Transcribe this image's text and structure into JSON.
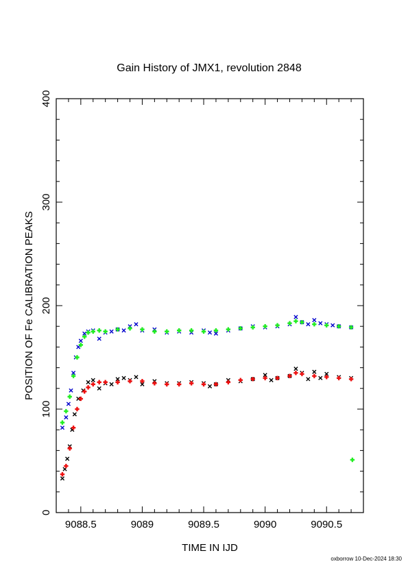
{
  "chart_data": {
    "type": "scatter",
    "title": "Gain History of JMX1, revolution 2848",
    "xlabel": "TIME IN IJD",
    "ylabel": "POSITION OF Fe CALIBRATION PEAKS",
    "xlim": [
      9088.3,
      9090.8
    ],
    "ylim": [
      0,
      400
    ],
    "x_ticks": [
      9088.5,
      9089,
      9089.5,
      9090,
      9090.5
    ],
    "x_tick_labels": [
      "9088.5",
      "9089",
      "9089.5",
      "9090",
      "9090.5"
    ],
    "y_ticks": [
      0,
      100,
      200,
      300,
      400
    ],
    "y_tick_labels": [
      "0",
      "100",
      "200",
      "300",
      "400"
    ],
    "footer": "oxborrow 10-Dec-2024 18:30",
    "series": [
      {
        "color": "#0000cc",
        "marker": "x",
        "x": [
          9088.35,
          9088.38,
          9088.4,
          9088.42,
          9088.44,
          9088.46,
          9088.48,
          9088.5,
          9088.53,
          9088.56,
          9088.6,
          9088.65,
          9088.7,
          9088.75,
          9088.8,
          9088.85,
          9088.9,
          9088.95,
          9089.0,
          9089.1,
          9089.2,
          9089.3,
          9089.4,
          9089.5,
          9089.55,
          9089.6,
          9089.7,
          9089.8,
          9089.9,
          9090.0,
          9090.1,
          9090.2,
          9090.25,
          9090.3,
          9090.35,
          9090.4,
          9090.45,
          9090.5,
          9090.55,
          9090.6,
          9090.7
        ],
        "y": [
          82,
          92,
          105,
          118,
          135,
          150,
          160,
          166,
          173,
          175,
          176,
          168,
          174,
          175,
          177,
          176,
          180,
          182,
          176,
          177,
          174,
          175,
          174,
          176,
          174,
          173,
          176,
          178,
          180,
          179,
          180,
          182,
          189,
          184,
          182,
          186,
          183,
          182,
          181,
          180,
          179
        ]
      },
      {
        "color": "#22ee22",
        "marker": "+",
        "x": [
          9088.35,
          9088.38,
          9088.41,
          9088.44,
          9088.47,
          9088.5,
          9088.53,
          9088.56,
          9088.6,
          9088.65,
          9088.7,
          9088.8,
          9088.9,
          9089.0,
          9089.1,
          9089.2,
          9089.3,
          9089.4,
          9089.5,
          9089.6,
          9089.7,
          9089.8,
          9089.9,
          9090.0,
          9090.1,
          9090.2,
          9090.25,
          9090.3,
          9090.4,
          9090.5,
          9090.6,
          9090.7
        ],
        "y": [
          87,
          98,
          112,
          132,
          150,
          162,
          170,
          174,
          175,
          176,
          175,
          177,
          178,
          177,
          175,
          175,
          176,
          176,
          175,
          176,
          177,
          178,
          179,
          180,
          181,
          183,
          185,
          184,
          182,
          181,
          180,
          179
        ]
      },
      {
        "color": "#22ee22",
        "marker": "+",
        "x": [
          9090.71
        ],
        "y": [
          51
        ]
      },
      {
        "color": "#000000",
        "marker": "x",
        "x": [
          9088.35,
          9088.37,
          9088.39,
          9088.41,
          9088.43,
          9088.45,
          9088.48,
          9088.52,
          9088.56,
          9088.6,
          9088.65,
          9088.7,
          9088.75,
          9088.8,
          9088.85,
          9088.9,
          9088.95,
          9089.0,
          9089.1,
          9089.2,
          9089.3,
          9089.4,
          9089.5,
          9089.55,
          9089.6,
          9089.7,
          9089.8,
          9089.9,
          9090.0,
          9090.05,
          9090.1,
          9090.2,
          9090.25,
          9090.3,
          9090.35,
          9090.4,
          9090.45,
          9090.5,
          9090.6,
          9090.7
        ],
        "y": [
          33,
          42,
          52,
          64,
          80,
          95,
          110,
          118,
          126,
          128,
          120,
          125,
          124,
          129,
          130,
          128,
          131,
          124,
          127,
          125,
          125,
          126,
          125,
          122,
          124,
          128,
          127,
          129,
          133,
          128,
          130,
          132,
          139,
          135,
          129,
          136,
          130,
          134,
          131,
          130
        ]
      },
      {
        "color": "#ee1111",
        "marker": "+",
        "x": [
          9088.35,
          9088.38,
          9088.41,
          9088.44,
          9088.47,
          9088.5,
          9088.53,
          9088.56,
          9088.6,
          9088.65,
          9088.7,
          9088.8,
          9088.9,
          9089.0,
          9089.1,
          9089.2,
          9089.3,
          9089.4,
          9089.5,
          9089.6,
          9089.7,
          9089.8,
          9089.9,
          9090.0,
          9090.1,
          9090.2,
          9090.25,
          9090.3,
          9090.4,
          9090.5,
          9090.6,
          9090.7
        ],
        "y": [
          37,
          45,
          62,
          82,
          100,
          110,
          117,
          121,
          124,
          126,
          126,
          126,
          127,
          127,
          125,
          124,
          124,
          125,
          124,
          124,
          126,
          128,
          129,
          130,
          130,
          132,
          135,
          134,
          132,
          131,
          130,
          129
        ]
      }
    ]
  }
}
